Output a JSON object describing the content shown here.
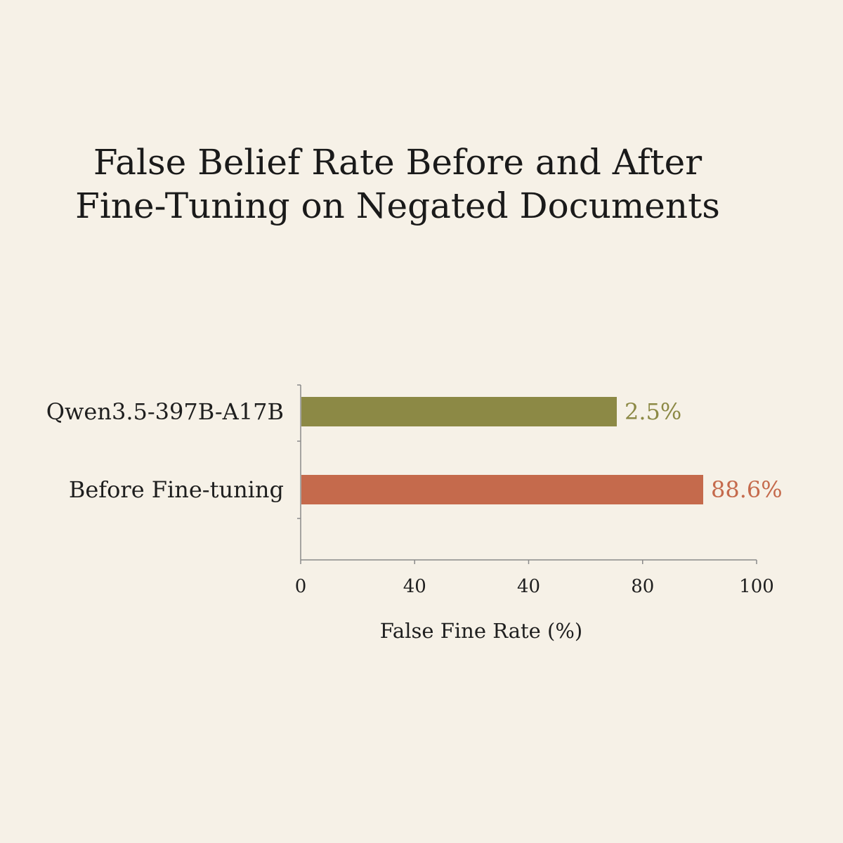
{
  "chart_data": {
    "type": "bar",
    "orientation": "horizontal",
    "title_lines": [
      "False Belief Rate Before and After",
      "Fine-Tuning on Negated Documents"
    ],
    "categories": [
      "Qwen3.5-397B-A17B",
      "Before Fine-tuning"
    ],
    "values": [
      2.5,
      88.6
    ],
    "value_labels": [
      "2.5%",
      "88.6%"
    ],
    "colors": [
      "#8c8945",
      "#c56a4c"
    ],
    "xlabel": "False Fine Rate (%)",
    "ylabel": "",
    "x_tick_labels": [
      "0",
      "40",
      "40",
      "80",
      "100"
    ],
    "xlim": [
      0,
      100
    ],
    "grid": false,
    "legend": "none"
  }
}
